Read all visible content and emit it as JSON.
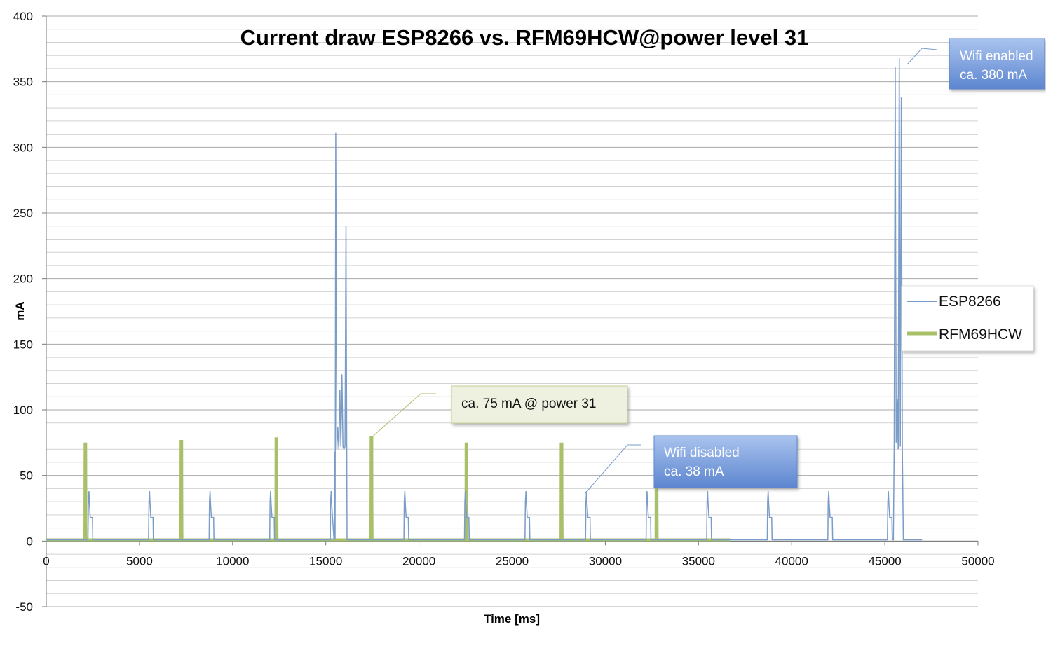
{
  "chart_data": {
    "type": "line",
    "title": "Current draw  ESP8266 vs. RFM69HCW@power level 31",
    "xlabel": "Time [ms]",
    "ylabel": "mA",
    "xlim": [
      0,
      50000
    ],
    "ylim": [
      -50,
      400
    ],
    "x_ticks": [
      "0",
      "5000",
      "10000",
      "15000",
      "20000",
      "25000",
      "30000",
      "35000",
      "40000",
      "45000",
      "50000"
    ],
    "y_ticks": [
      "-50",
      "0",
      "50",
      "100",
      "150",
      "200",
      "250",
      "300",
      "350",
      "400"
    ],
    "grid": true,
    "legend_position": "right",
    "series": [
      {
        "name": "ESP8266",
        "color": "#7a9cc8",
        "baseline": 1,
        "x_end": 47000,
        "bursts": [
          {
            "x": 2300,
            "peaks": [
              38,
              18
            ]
          },
          {
            "x": 5550,
            "peaks": [
              38,
              18
            ]
          },
          {
            "x": 8800,
            "peaks": [
              38,
              18
            ]
          },
          {
            "x": 12050,
            "peaks": [
              38,
              18
            ]
          },
          {
            "x": 15300,
            "peaks": [
              38,
              18
            ]
          },
          {
            "x": 19250,
            "peaks": [
              38,
              18
            ]
          },
          {
            "x": 22500,
            "peaks": [
              38,
              18
            ]
          },
          {
            "x": 25750,
            "peaks": [
              38,
              18
            ]
          },
          {
            "x": 29000,
            "peaks": [
              38,
              18
            ]
          },
          {
            "x": 32250,
            "peaks": [
              38,
              18
            ]
          },
          {
            "x": 35500,
            "peaks": [
              38,
              18
            ]
          },
          {
            "x": 38750,
            "peaks": [
              38,
              18
            ]
          },
          {
            "x": 42000,
            "peaks": [
              38,
              18
            ]
          },
          {
            "x": 45200,
            "peaks": [
              38,
              18
            ]
          }
        ],
        "spikes": [
          {
            "x": 15480,
            "values": [
              68,
              311,
              70,
              87,
              70,
              115,
              72,
              127,
              72,
              70,
              72,
              240,
              1
            ]
          },
          {
            "x": 45500,
            "values": [
              70,
              361,
              75,
              108,
              70,
              368,
              72,
              338,
              70,
              1
            ]
          }
        ]
      },
      {
        "name": "RFM69HCW",
        "color": "#a9c06a",
        "baseline": 1,
        "x_end": 36700,
        "pulses": [
          {
            "x": 2100,
            "value": 74
          },
          {
            "x": 7250,
            "value": 76
          },
          {
            "x": 12350,
            "value": 78
          },
          {
            "x": 17450,
            "value": 79
          },
          {
            "x": 22550,
            "value": 74
          },
          {
            "x": 27650,
            "value": 74
          },
          {
            "x": 32750,
            "value": 74
          }
        ]
      }
    ],
    "annotations": [
      {
        "lines": [
          "ca. 75 mA @ power 31"
        ],
        "style": "green"
      },
      {
        "lines": [
          "Wifi disabled",
          "ca. 38 mA"
        ],
        "style": "blue"
      },
      {
        "lines": [
          "Wifi enabled",
          "ca. 380 mA"
        ],
        "style": "blue"
      }
    ]
  }
}
